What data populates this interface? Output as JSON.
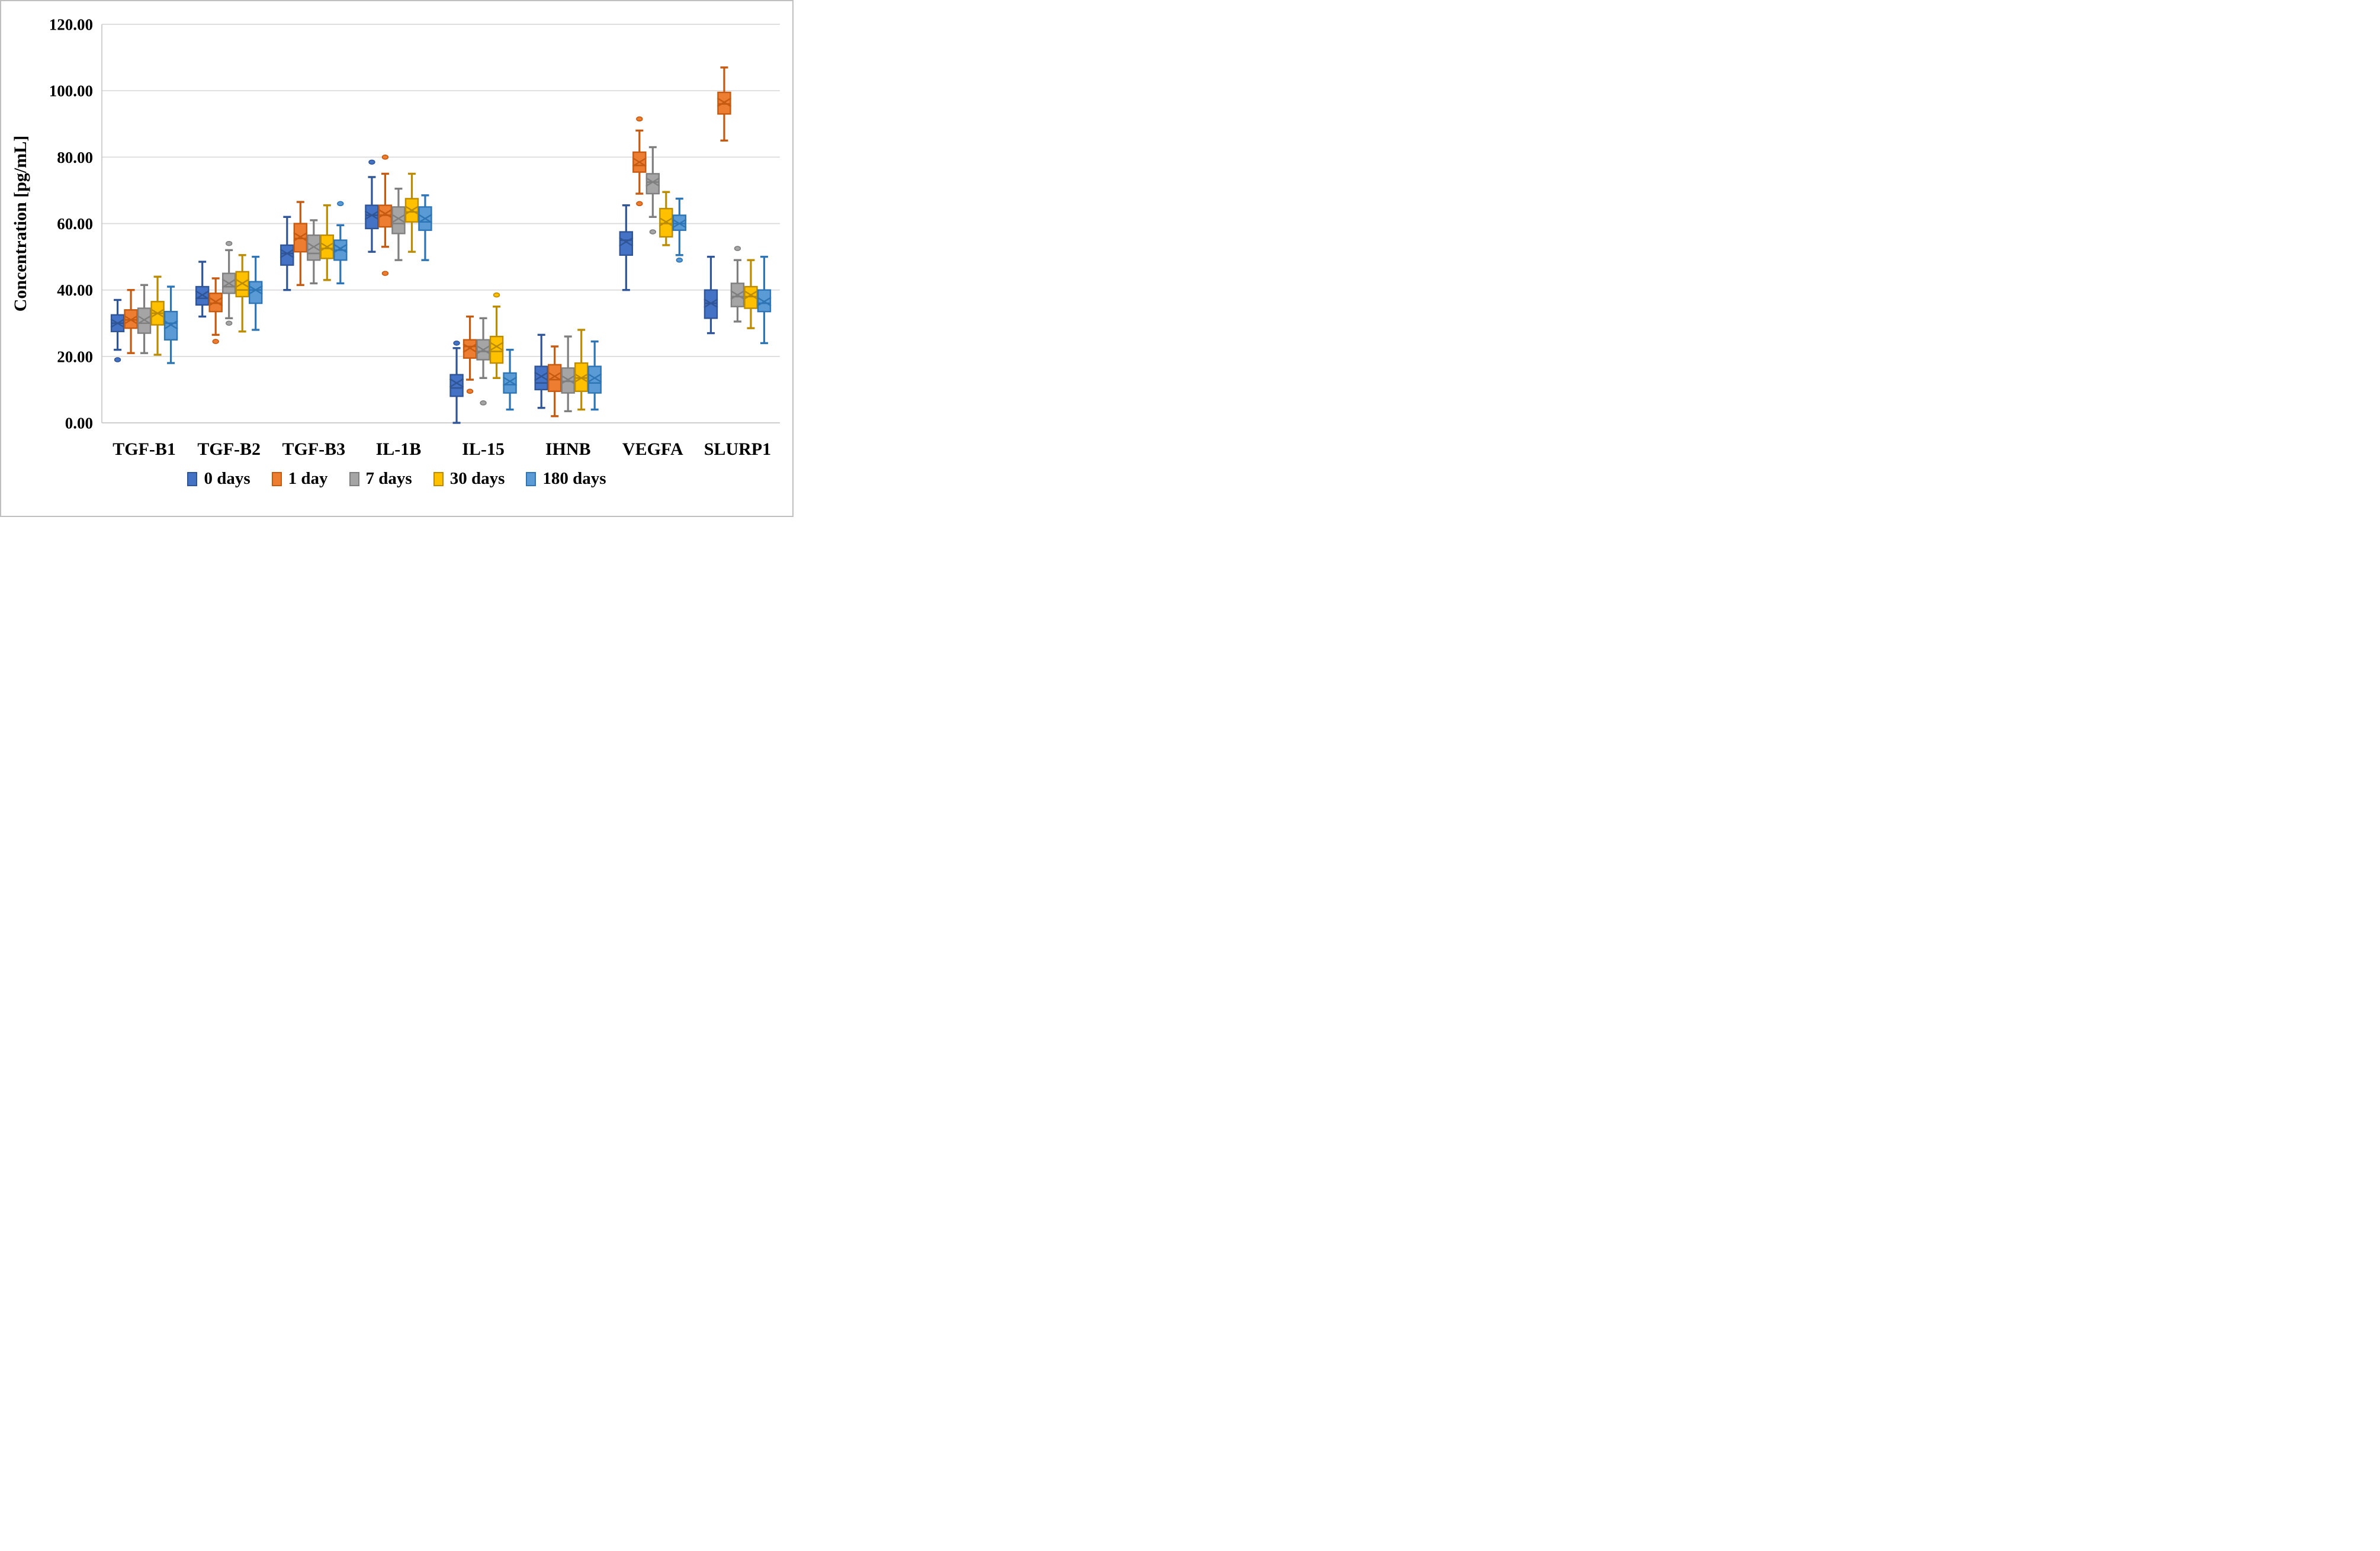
{
  "chart_data": {
    "type": "boxplot",
    "title": "",
    "ylabel": "Concentration [pg/mL]",
    "xlabel": "",
    "ylim": [
      0,
      120
    ],
    "ytick_step": 20,
    "ytick_labels": [
      "0.00",
      "20.00",
      "40.00",
      "60.00",
      "80.00",
      "100.00",
      "120.00"
    ],
    "grid": "horizontal",
    "legend_position": "bottom",
    "gridline_color": "#d9d9d9",
    "axis_line_color": "#c8c8c8",
    "figure_border_color": "#bfbfbf",
    "categories": [
      "TGF-B1",
      "TGF-B2",
      "TGF-B3",
      "IL-1B",
      "IL-15",
      "IHNB",
      "VEGFA",
      "SLURP1"
    ],
    "series": [
      {
        "name": "0 days",
        "fill": "#4472C4",
        "stroke": "#2F5597",
        "boxes": [
          {
            "min": 22,
            "q1": 27.5,
            "median": 30,
            "mean": 30,
            "q3": 32.5,
            "max": 37,
            "outliers": [
              19
            ]
          },
          {
            "min": 32,
            "q1": 35.5,
            "median": 37.5,
            "mean": 38.5,
            "q3": 41,
            "max": 48.5,
            "outliers": []
          },
          {
            "min": 40,
            "q1": 47.5,
            "median": 51,
            "mean": 51,
            "q3": 53.5,
            "max": 62,
            "outliers": []
          },
          {
            "min": 51.5,
            "q1": 58.5,
            "median": 62.5,
            "mean": 62.5,
            "q3": 65.5,
            "max": 74,
            "outliers": [
              78.5
            ]
          },
          {
            "min": 0,
            "q1": 8,
            "median": 10.5,
            "mean": 12,
            "q3": 14.5,
            "max": 22.5,
            "outliers": [
              24
            ]
          },
          {
            "min": 4.5,
            "q1": 10,
            "median": 12,
            "mean": 14,
            "q3": 17,
            "max": 26.5,
            "outliers": []
          },
          {
            "min": 40,
            "q1": 50.5,
            "median": 55,
            "mean": 54.5,
            "q3": 57.5,
            "max": 65.5,
            "outliers": []
          },
          {
            "min": 27,
            "q1": 31.5,
            "median": 36,
            "mean": 36,
            "q3": 40,
            "max": 50,
            "outliers": []
          }
        ]
      },
      {
        "name": "1 day",
        "fill": "#ED7D31",
        "stroke": "#C55A11",
        "boxes": [
          {
            "min": 21,
            "q1": 28.5,
            "median": 31,
            "mean": 31,
            "q3": 34,
            "max": 40,
            "outliers": []
          },
          {
            "min": 26.5,
            "q1": 33.5,
            "median": 36,
            "mean": 36.5,
            "q3": 39,
            "max": 43.5,
            "outliers": [
              24.5
            ]
          },
          {
            "min": 41.5,
            "q1": 51.5,
            "median": 55.5,
            "mean": 56,
            "q3": 60,
            "max": 66.5,
            "outliers": []
          },
          {
            "min": 53,
            "q1": 59,
            "median": 62.5,
            "mean": 63,
            "q3": 65.5,
            "max": 75,
            "outliers": [
              80,
              45
            ]
          },
          {
            "min": 13,
            "q1": 19.5,
            "median": 23,
            "mean": 22.5,
            "q3": 25,
            "max": 32,
            "outliers": [
              9.5
            ]
          },
          {
            "min": 2,
            "q1": 9.5,
            "median": 13,
            "mean": 14,
            "q3": 17.5,
            "max": 23,
            "outliers": []
          },
          {
            "min": 69,
            "q1": 75.5,
            "median": 77.5,
            "mean": 78.5,
            "q3": 81.5,
            "max": 88,
            "outliers": [
              91.5,
              66
            ]
          },
          {
            "min": 85,
            "q1": 93,
            "median": 96,
            "mean": 96.5,
            "q3": 99.5,
            "max": 107,
            "outliers": []
          }
        ]
      },
      {
        "name": "7 days",
        "fill": "#A5A5A5",
        "stroke": "#7F7F7F",
        "boxes": [
          {
            "min": 21,
            "q1": 27,
            "median": 30,
            "mean": 31,
            "q3": 34.5,
            "max": 41.5,
            "outliers": []
          },
          {
            "min": 31.5,
            "q1": 39,
            "median": 41,
            "mean": 42,
            "q3": 45,
            "max": 52,
            "outliers": [
              54,
              30
            ]
          },
          {
            "min": 42,
            "q1": 49,
            "median": 51,
            "mean": 53,
            "q3": 56.5,
            "max": 61,
            "outliers": []
          },
          {
            "min": 49,
            "q1": 57,
            "median": 60,
            "mean": 61.5,
            "q3": 65,
            "max": 70.5,
            "outliers": []
          },
          {
            "min": 13.5,
            "q1": 19,
            "median": 21.5,
            "mean": 22,
            "q3": 25,
            "max": 31.5,
            "outliers": [
              6
            ]
          },
          {
            "min": 3.5,
            "q1": 9,
            "median": 12.5,
            "mean": 13,
            "q3": 16.5,
            "max": 26,
            "outliers": []
          },
          {
            "min": 62,
            "q1": 69,
            "median": 72.5,
            "mean": 72.5,
            "q3": 75,
            "max": 83,
            "outliers": [
              57.5
            ]
          },
          {
            "min": 30.5,
            "q1": 35,
            "median": 38,
            "mean": 38.5,
            "q3": 42,
            "max": 49,
            "outliers": [
              52.5
            ]
          }
        ]
      },
      {
        "name": "30 days",
        "fill": "#FFC000",
        "stroke": "#BC8C00",
        "boxes": [
          {
            "min": 20.5,
            "q1": 29.5,
            "median": 33,
            "mean": 33,
            "q3": 36.5,
            "max": 44,
            "outliers": []
          },
          {
            "min": 27.5,
            "q1": 38,
            "median": 40,
            "mean": 42,
            "q3": 45.5,
            "max": 50.5,
            "outliers": []
          },
          {
            "min": 43,
            "q1": 49.5,
            "median": 52.5,
            "mean": 53,
            "q3": 56.5,
            "max": 65.5,
            "outliers": []
          },
          {
            "min": 51.5,
            "q1": 60.5,
            "median": 63.5,
            "mean": 64,
            "q3": 67.5,
            "max": 75,
            "outliers": []
          },
          {
            "min": 13.5,
            "q1": 18,
            "median": 21.5,
            "mean": 23,
            "q3": 26,
            "max": 35,
            "outliers": [
              38.5
            ]
          },
          {
            "min": 4,
            "q1": 9.5,
            "median": 13.5,
            "mean": 13.5,
            "q3": 18,
            "max": 28,
            "outliers": []
          },
          {
            "min": 53.5,
            "q1": 56,
            "median": 60,
            "mean": 60.5,
            "q3": 64.5,
            "max": 69.5,
            "outliers": []
          },
          {
            "min": 28.5,
            "q1": 34.5,
            "median": 38,
            "mean": 38.5,
            "q3": 41,
            "max": 49,
            "outliers": []
          }
        ]
      },
      {
        "name": "180 days",
        "fill": "#5B9BD5",
        "stroke": "#2E75B6",
        "boxes": [
          {
            "min": 18,
            "q1": 25,
            "median": 30,
            "mean": 29.5,
            "q3": 33.5,
            "max": 41,
            "outliers": []
          },
          {
            "min": 28,
            "q1": 36,
            "median": 40,
            "mean": 40,
            "q3": 42.5,
            "max": 50,
            "outliers": []
          },
          {
            "min": 42,
            "q1": 49,
            "median": 52,
            "mean": 52.5,
            "q3": 55,
            "max": 59.5,
            "outliers": [
              66
            ]
          },
          {
            "min": 49,
            "q1": 58,
            "median": 60.5,
            "mean": 61.5,
            "q3": 65,
            "max": 68.5,
            "outliers": []
          },
          {
            "min": 4,
            "q1": 9,
            "median": 11.5,
            "mean": 12.5,
            "q3": 15,
            "max": 22,
            "outliers": []
          },
          {
            "min": 4,
            "q1": 9,
            "median": 12,
            "mean": 13.5,
            "q3": 17,
            "max": 24.5,
            "outliers": []
          },
          {
            "min": 50.5,
            "q1": 58,
            "median": 60,
            "mean": 60,
            "q3": 62.5,
            "max": 67.5,
            "outliers": [
              49
            ]
          },
          {
            "min": 24,
            "q1": 33.5,
            "median": 36,
            "mean": 36.5,
            "q3": 40,
            "max": 50,
            "outliers": []
          }
        ]
      }
    ]
  }
}
